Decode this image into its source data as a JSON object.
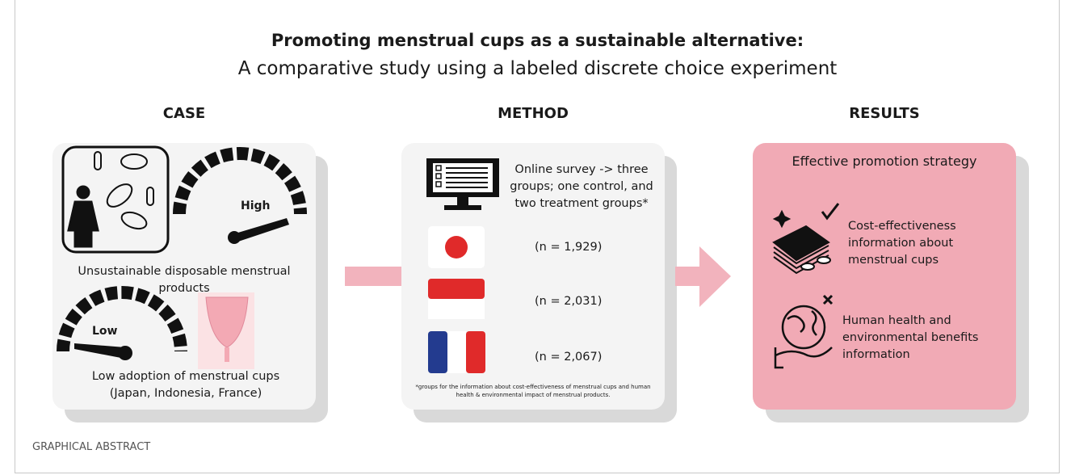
{
  "header": {
    "title": "Promoting menstrual cups as a sustainable alternative:",
    "subtitle": "A comparative study using a labeled discrete choice experiment"
  },
  "case": {
    "heading": "CASE",
    "high_label": "High",
    "problem": "Unsustainable disposable menstrual products",
    "low_label": "Low",
    "adoption": "Low adoption of menstrual cups (Japan, Indonesia, France)"
  },
  "method": {
    "heading": "METHOD",
    "survey": "Online survey -> three groups; one control, and two treatment groups*",
    "samples": [
      "(n = 1,929)",
      "(n = 2,031)",
      "(n = 2,067)"
    ],
    "footnote": "*groups for the information about cost-effectiveness of menstrual cups and human health & environmental impact of menstrual products."
  },
  "results": {
    "heading": "RESULTS",
    "title": "Effective promotion strategy",
    "items": [
      "Cost-effectiveness information about menstrual cups",
      "Human health and environmental benefits information"
    ]
  },
  "footer": "GRAPHICAL ABSTRACT"
}
